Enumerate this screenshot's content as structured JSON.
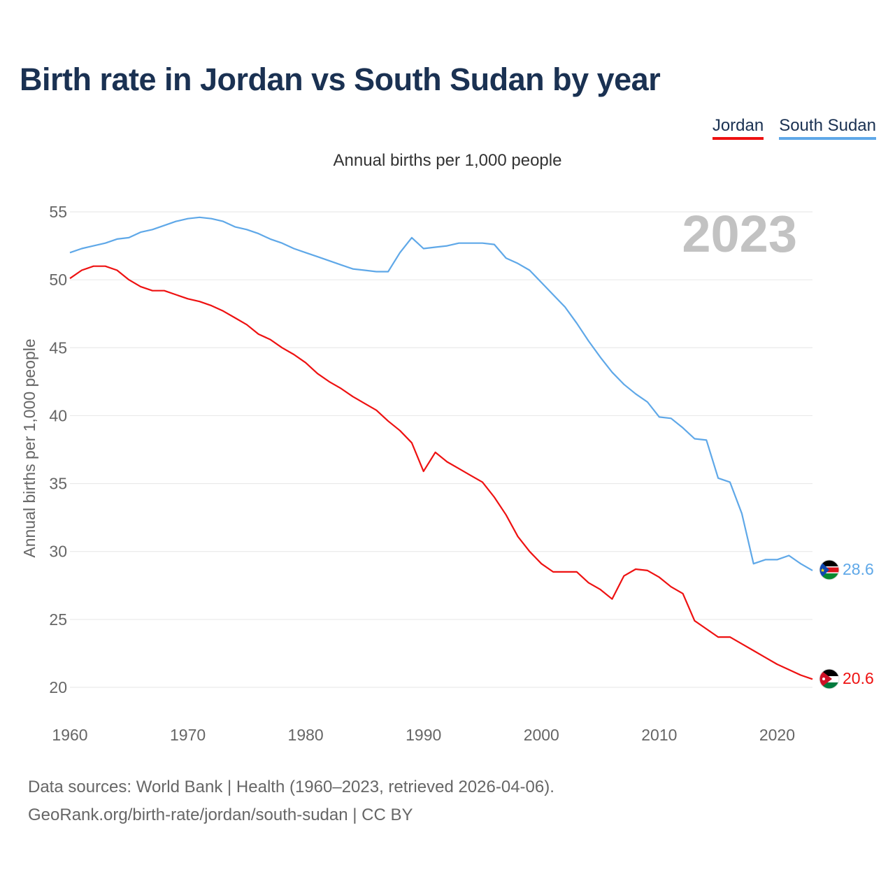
{
  "title": "Birth rate in Jordan vs South Sudan by year",
  "legend": [
    {
      "label": "Jordan",
      "color": "#ee1111"
    },
    {
      "label": "South Sudan",
      "color": "#5fa8e8"
    }
  ],
  "subtitle": "Annual births per 1,000 people",
  "year_label": "2023",
  "source": {
    "line1": "Data sources: World Bank | Health (1960–2023, retrieved 2026-04-06).",
    "line2": "GeoRank.org/birth-rate/jordan/south-sudan | CC BY"
  },
  "chart_data": {
    "type": "line",
    "title": "Birth rate in Jordan vs South Sudan by year",
    "xlabel": "",
    "ylabel": "Annual births per 1,000 people",
    "xlim": [
      1960,
      2023
    ],
    "ylim": [
      20,
      55
    ],
    "x_ticks": [
      1960,
      1970,
      1980,
      1990,
      2000,
      2010,
      2020
    ],
    "y_ticks": [
      20,
      25,
      30,
      35,
      40,
      45,
      50,
      55
    ],
    "grid": true,
    "legend_position": "top-right",
    "x": [
      1960,
      1961,
      1962,
      1963,
      1964,
      1965,
      1966,
      1967,
      1968,
      1969,
      1970,
      1971,
      1972,
      1973,
      1974,
      1975,
      1976,
      1977,
      1978,
      1979,
      1980,
      1981,
      1982,
      1983,
      1984,
      1985,
      1986,
      1987,
      1988,
      1989,
      1990,
      1991,
      1992,
      1993,
      1994,
      1995,
      1996,
      1997,
      1998,
      1999,
      2000,
      2001,
      2002,
      2003,
      2004,
      2005,
      2006,
      2007,
      2008,
      2009,
      2010,
      2011,
      2012,
      2013,
      2014,
      2015,
      2016,
      2017,
      2018,
      2019,
      2020,
      2021,
      2022,
      2023
    ],
    "series": [
      {
        "name": "Jordan",
        "color": "#ee1111",
        "end_label": "20.6",
        "values": [
          50.1,
          50.7,
          51.0,
          51.0,
          50.7,
          50.0,
          49.5,
          49.2,
          49.2,
          48.9,
          48.6,
          48.4,
          48.1,
          47.7,
          47.2,
          46.7,
          46.0,
          45.6,
          45.0,
          44.5,
          43.9,
          43.1,
          42.5,
          42.0,
          41.4,
          40.9,
          40.4,
          39.6,
          38.9,
          38.0,
          35.9,
          37.3,
          36.6,
          36.1,
          35.6,
          35.1,
          34.0,
          32.7,
          31.1,
          30.0,
          29.1,
          28.5,
          28.5,
          28.5,
          27.7,
          27.2,
          26.5,
          28.2,
          28.7,
          28.6,
          28.1,
          27.4,
          26.9,
          24.9,
          24.3,
          23.7,
          23.7,
          23.2,
          22.7,
          22.2,
          21.7,
          21.3,
          20.9,
          20.6
        ]
      },
      {
        "name": "South Sudan",
        "color": "#5fa8e8",
        "end_label": "28.6",
        "values": [
          52.0,
          52.3,
          52.5,
          52.7,
          53.0,
          53.1,
          53.5,
          53.7,
          54.0,
          54.3,
          54.5,
          54.6,
          54.5,
          54.3,
          53.9,
          53.7,
          53.4,
          53.0,
          52.7,
          52.3,
          52.0,
          51.7,
          51.4,
          51.1,
          50.8,
          50.7,
          50.6,
          50.6,
          52.0,
          53.1,
          52.3,
          52.4,
          52.5,
          52.7,
          52.7,
          52.7,
          52.6,
          51.6,
          51.2,
          50.7,
          49.8,
          48.9,
          48.0,
          46.8,
          45.5,
          44.3,
          43.2,
          42.3,
          41.6,
          41.0,
          39.9,
          39.8,
          39.1,
          38.3,
          38.2,
          35.4,
          35.1,
          32.8,
          29.1,
          29.4,
          29.4,
          29.7,
          29.1,
          28.6
        ]
      }
    ]
  }
}
